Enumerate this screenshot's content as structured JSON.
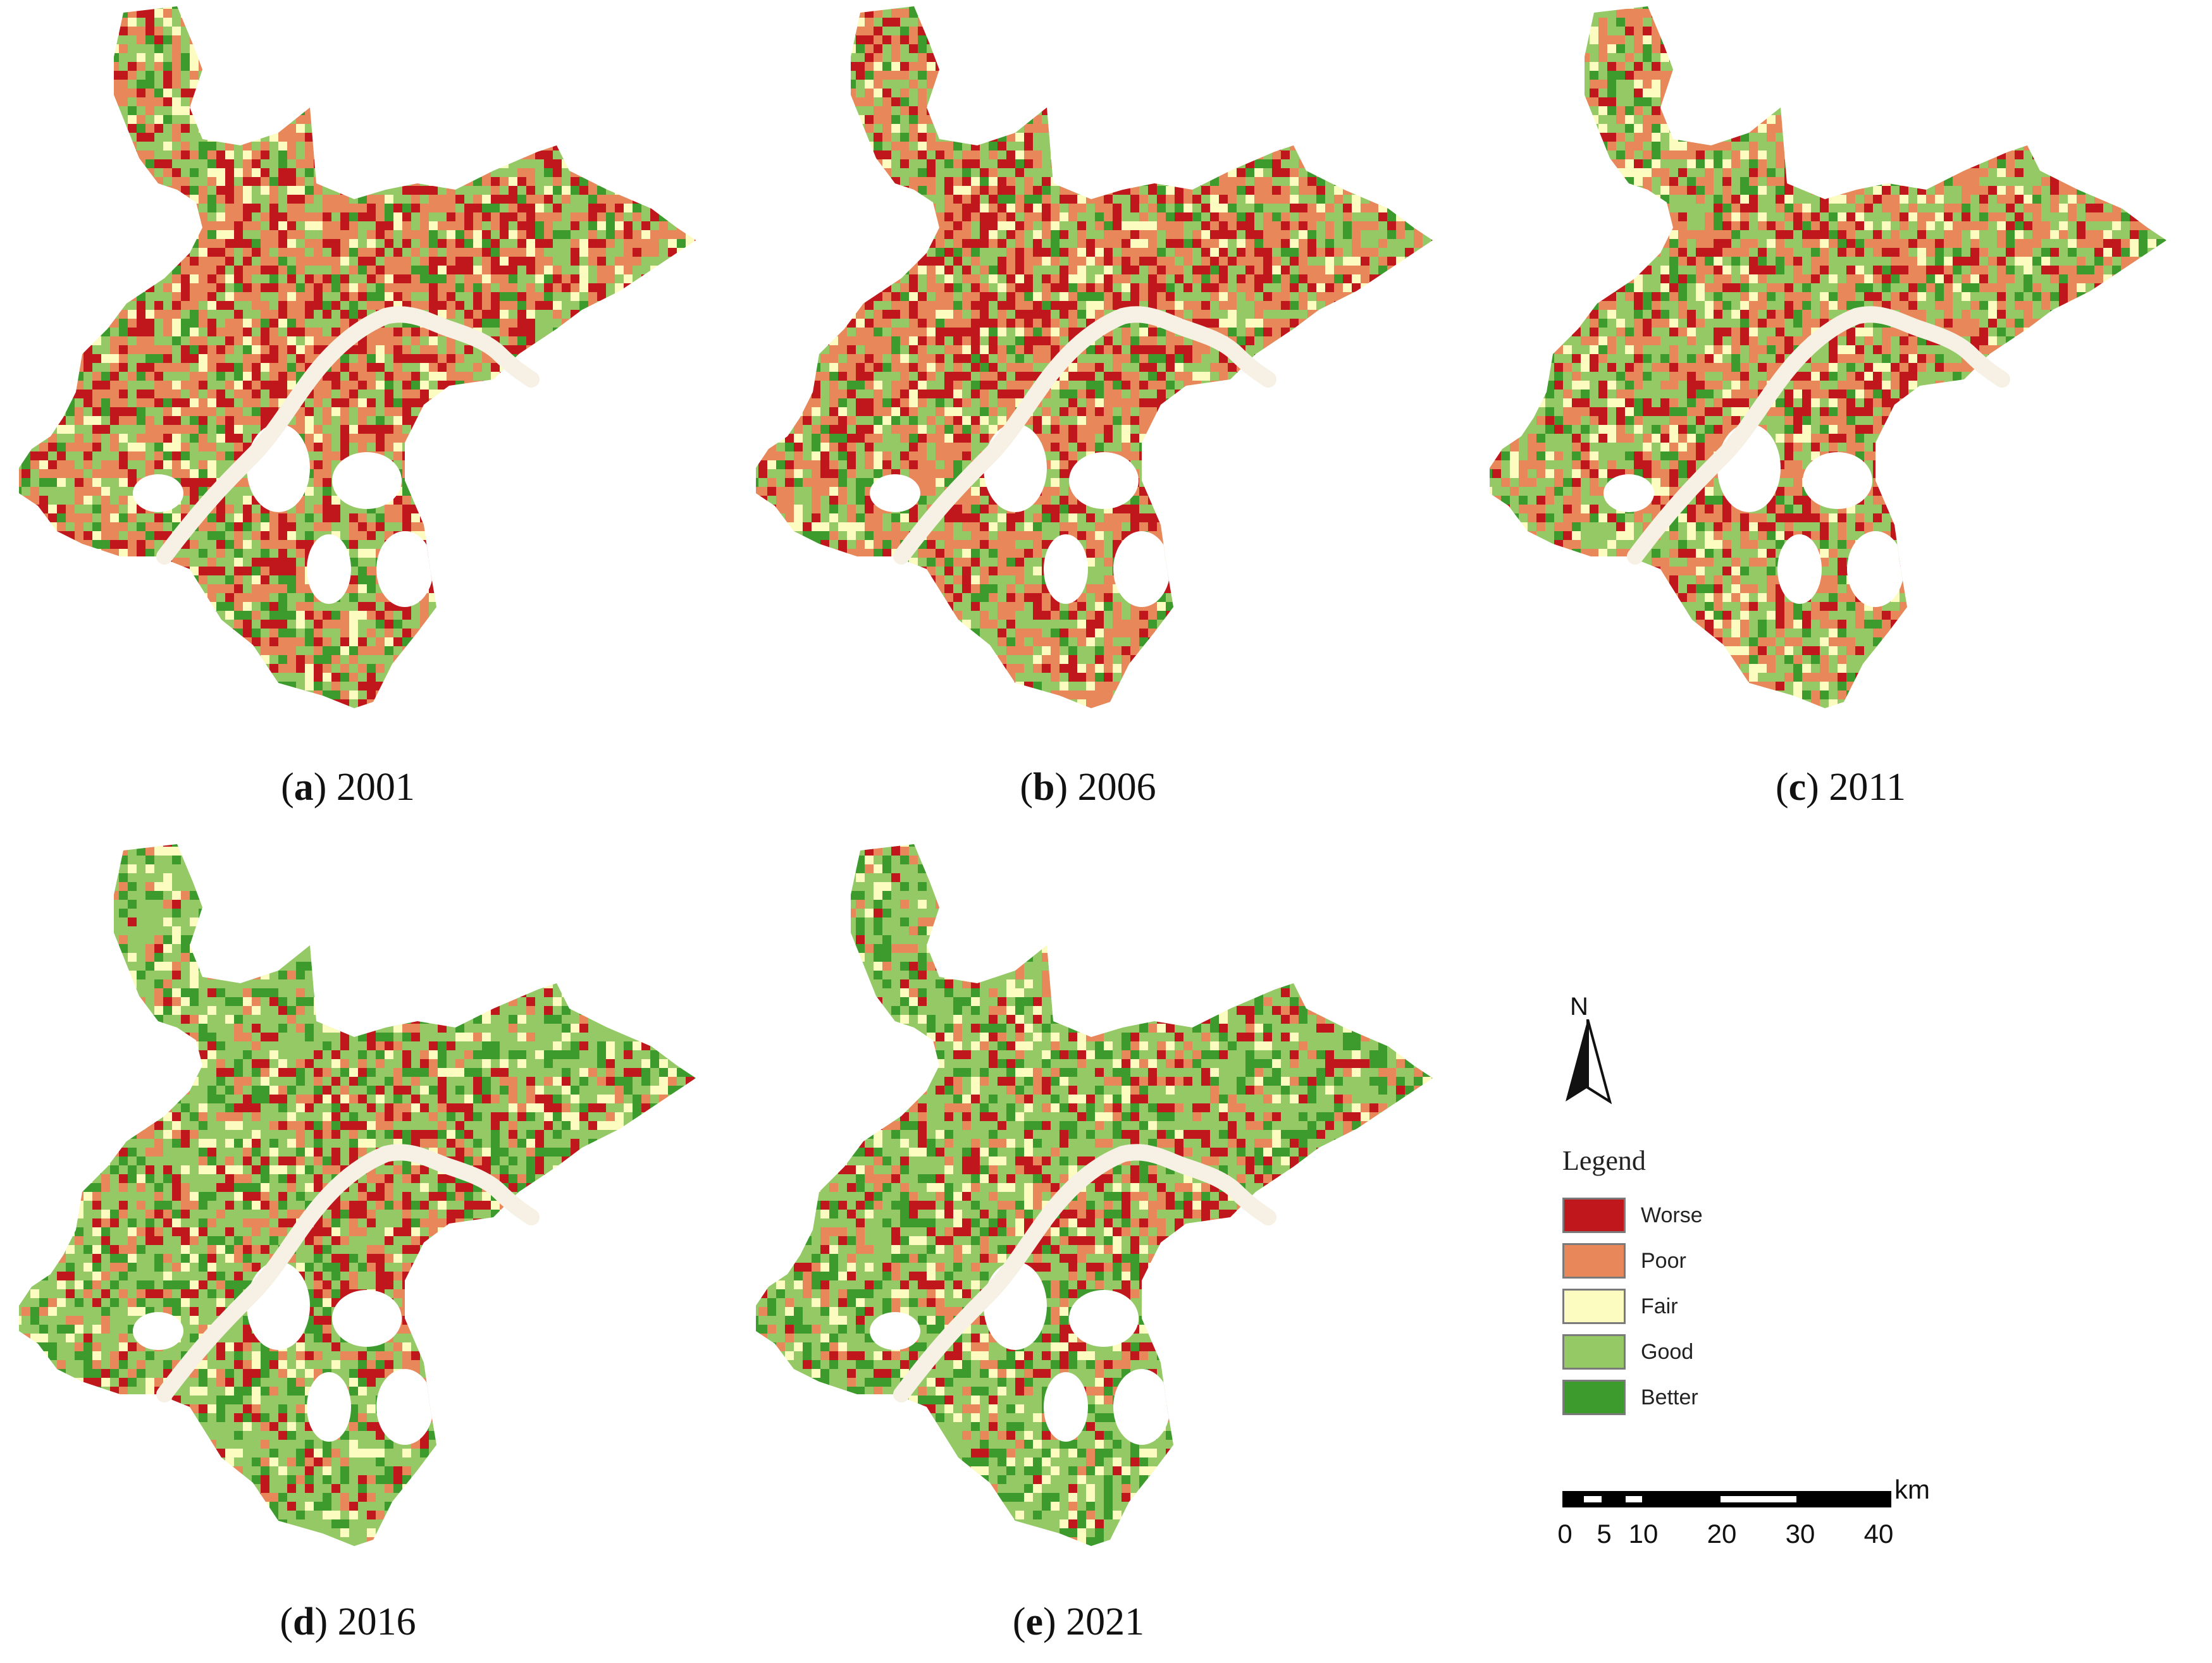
{
  "panels": [
    {
      "letter": "a",
      "year": "2001",
      "dominant": "mixed-red"
    },
    {
      "letter": "b",
      "year": "2006",
      "dominant": "mixed-red"
    },
    {
      "letter": "c",
      "year": "2011",
      "dominant": "mixed"
    },
    {
      "letter": "d",
      "year": "2016",
      "dominant": "green"
    },
    {
      "letter": "e",
      "year": "2021",
      "dominant": "green"
    }
  ],
  "north_arrow": {
    "label": "N"
  },
  "legend": {
    "title": "Legend",
    "items": [
      {
        "label": "Worse",
        "color": "#c0171c"
      },
      {
        "label": "Poor",
        "color": "#e8885a"
      },
      {
        "label": "Fair",
        "color": "#fdfcc0"
      },
      {
        "label": "Good",
        "color": "#94c965"
      },
      {
        "label": "Better",
        "color": "#3d9a2c"
      }
    ]
  },
  "scale_bar": {
    "unit": "km",
    "ticks": [
      "0",
      "5",
      "10",
      "20",
      "30",
      "40"
    ]
  },
  "colors": {
    "river": "#f6f1e4",
    "worse": "#c0171c",
    "poor": "#e8885a",
    "fair": "#fdfcc0",
    "good": "#94c965",
    "better": "#3d9a2c"
  }
}
